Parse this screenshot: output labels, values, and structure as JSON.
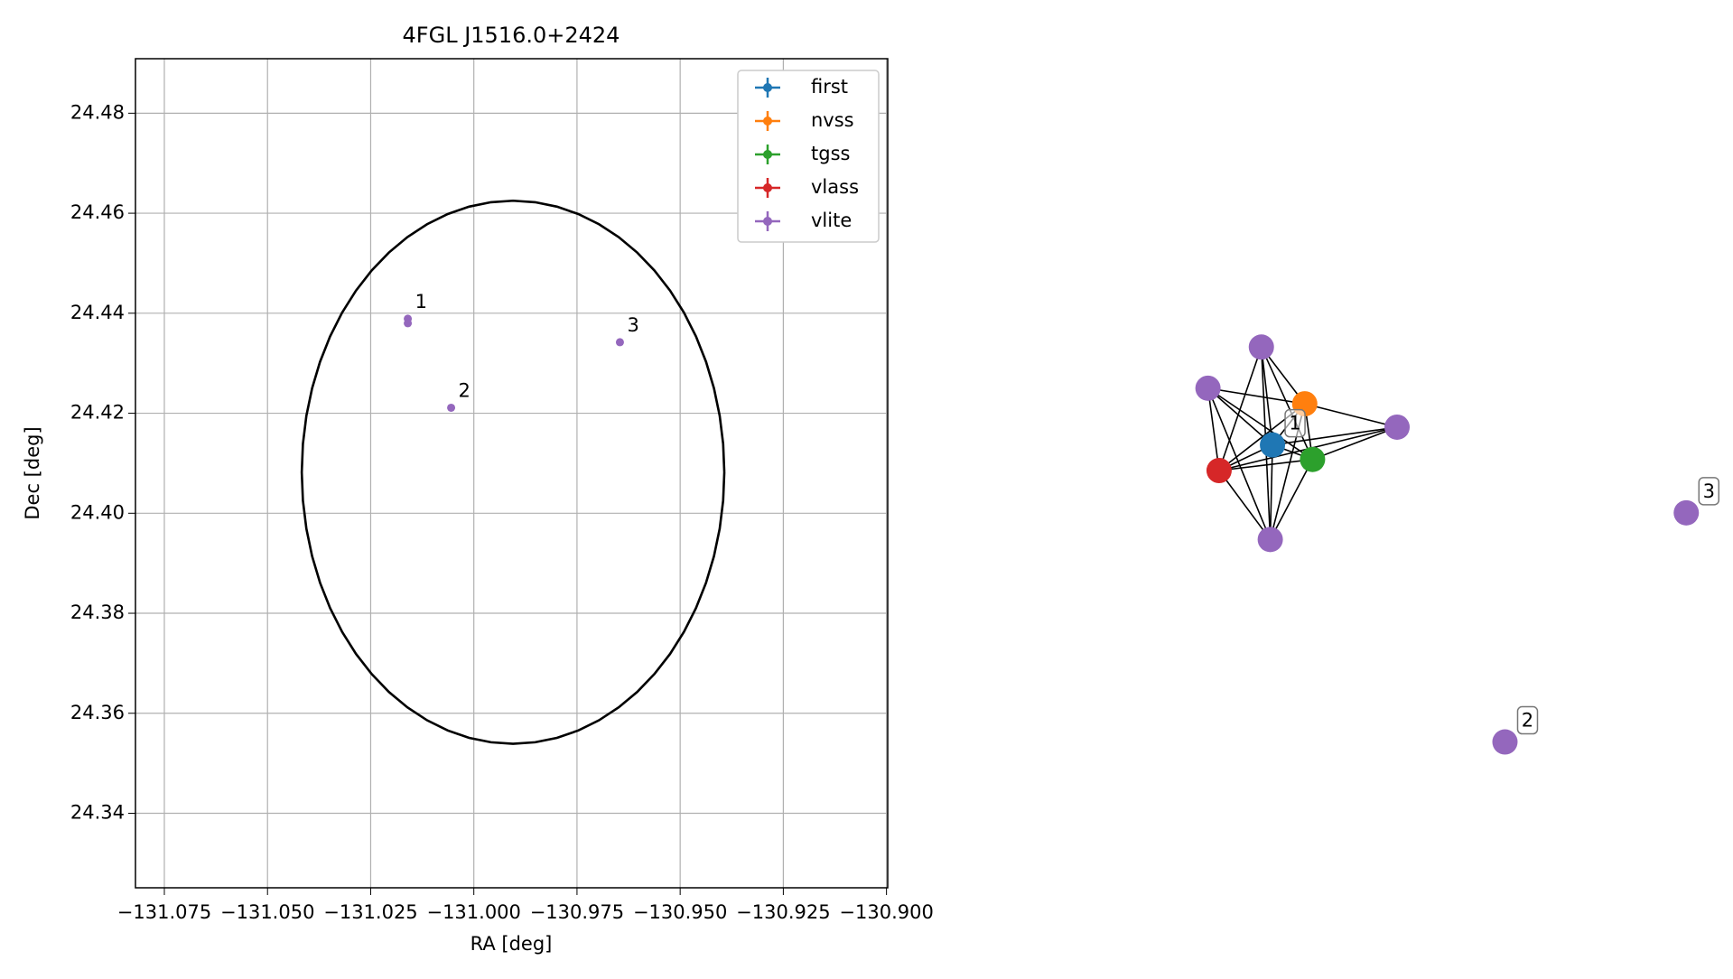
{
  "chart_data": {
    "type": "scatter",
    "title": "4FGL J1516.0+2424",
    "x_label": "RA [deg]",
    "y_label": "Dec [deg]",
    "xlim": [
      -131.082,
      -130.8997
    ],
    "ylim": [
      24.3251,
      24.4909
    ],
    "xticks": [
      {
        "value": -131.075,
        "label": "−131.075"
      },
      {
        "value": -131.05,
        "label": "−131.050"
      },
      {
        "value": -131.025,
        "label": "−131.025"
      },
      {
        "value": -131.0,
        "label": "−131.000"
      },
      {
        "value": -130.975,
        "label": "−130.975"
      },
      {
        "value": -130.95,
        "label": "−130.950"
      },
      {
        "value": -130.925,
        "label": "−130.925"
      },
      {
        "value": -130.9,
        "label": "−130.900"
      }
    ],
    "yticks": [
      24.34,
      24.36,
      24.38,
      {
        "value": 24.4,
        "label": "24.40"
      },
      24.42,
      24.44,
      24.46,
      24.48
    ],
    "grid": true,
    "legend": "upper right",
    "series": [
      {
        "name": "first",
        "color": "#1f77b4",
        "x": [],
        "values": []
      },
      {
        "name": "nvss",
        "color": "#ff7f0e",
        "x": [],
        "values": []
      },
      {
        "name": "tgss",
        "color": "#2ca02c",
        "x": [],
        "values": []
      },
      {
        "name": "vlass",
        "color": "#d62728",
        "x": [],
        "values": []
      },
      {
        "name": "vlite",
        "color": "#9467bd",
        "x": [
          -131.016,
          -131.016,
          -131.0055,
          -130.9646
        ],
        "values": [
          24.4389,
          24.438,
          24.4211,
          24.4342
        ]
      }
    ],
    "annotations": [
      {
        "text": "1",
        "point": 0
      },
      {
        "text": "2",
        "point": 2
      },
      {
        "text": "3",
        "point": 3
      }
    ],
    "ellipse": {
      "center": [
        -130.9905,
        24.4082
      ],
      "rx": 0.0512,
      "ry": 0.0543
    }
  },
  "graph": {
    "nodes": [
      {
        "color": "#9467bd"
      },
      {
        "color": "#9467bd"
      },
      {
        "color": "#ff7f0e"
      },
      {
        "color": "#1f77b4",
        "label": "1"
      },
      {
        "color": "#2ca02c"
      },
      {
        "color": "#d62728"
      },
      {
        "color": "#9467bd"
      },
      {
        "color": "#9467bd"
      },
      {
        "color": "#9467bd",
        "label": "3"
      },
      {
        "color": "#9467bd",
        "label": "2"
      }
    ],
    "edges": [
      [
        0,
        2
      ],
      [
        0,
        3
      ],
      [
        0,
        4
      ],
      [
        0,
        5
      ],
      [
        0,
        7
      ],
      [
        1,
        2
      ],
      [
        1,
        3
      ],
      [
        1,
        4
      ],
      [
        1,
        5
      ],
      [
        1,
        7
      ],
      [
        2,
        3
      ],
      [
        2,
        4
      ],
      [
        2,
        5
      ],
      [
        2,
        6
      ],
      [
        2,
        7
      ],
      [
        3,
        4
      ],
      [
        3,
        5
      ],
      [
        3,
        6
      ],
      [
        3,
        7
      ],
      [
        4,
        5
      ],
      [
        4,
        6
      ],
      [
        4,
        7
      ],
      [
        5,
        6
      ],
      [
        5,
        7
      ]
    ]
  }
}
